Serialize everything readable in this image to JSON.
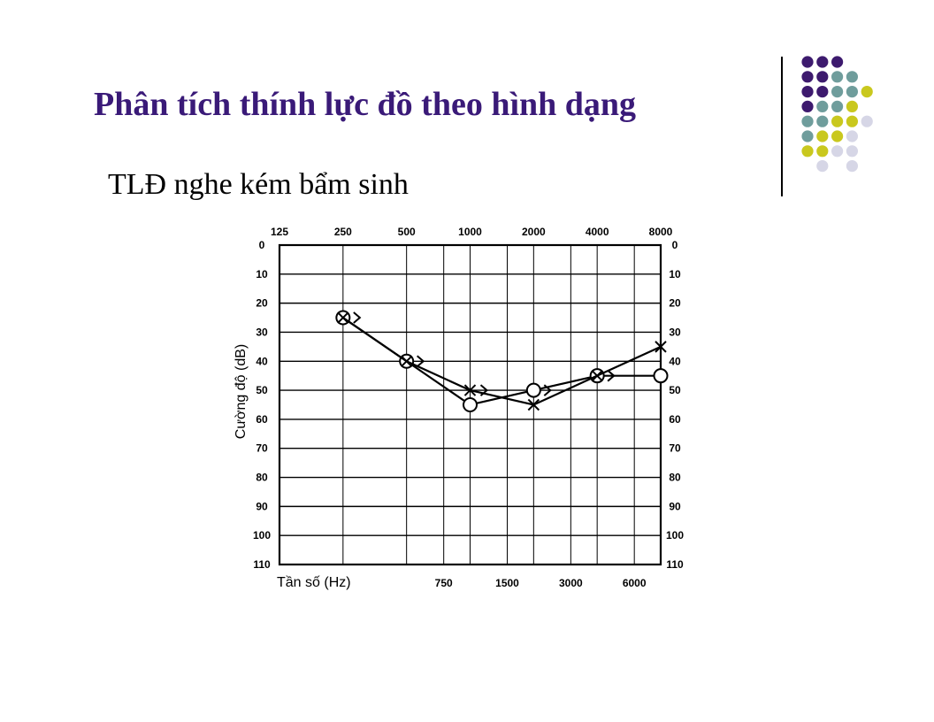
{
  "slide": {
    "title": "Phân tích thính lực đồ theo hình dạng",
    "subtitle": "TLĐ nghe kém bẩm sinh"
  },
  "decor": {
    "icon": "dot-grid-decoration",
    "colors": {
      "purple": "#3d1a6e",
      "teal": "#6f9d9c",
      "yellow": "#c9c81e",
      "lavender": "#d6d6e6"
    }
  },
  "chart_data": {
    "type": "line",
    "title": "",
    "xlabel": "Tần số (Hz)",
    "ylabel": "Cường độ (dB)",
    "x_scale": "log",
    "x_ticks_top": [
      "125",
      "250",
      "500",
      "1000",
      "2000",
      "4000",
      "8000"
    ],
    "x_ticks_bottom": [
      "750",
      "1500",
      "3000",
      "6000"
    ],
    "y_ticks": [
      "0",
      "10",
      "20",
      "30",
      "40",
      "50",
      "60",
      "70",
      "80",
      "90",
      "100",
      "110"
    ],
    "ylim": [
      0,
      110
    ],
    "y_inverted": true,
    "grid": true,
    "series": [
      {
        "marker": "circle",
        "x": [
          250,
          500,
          1000,
          2000,
          4000,
          8000
        ],
        "values": [
          25,
          40,
          55,
          50,
          45,
          45
        ]
      },
      {
        "marker": "x",
        "x": [
          250,
          500,
          1000,
          2000,
          4000,
          8000
        ],
        "values": [
          25,
          40,
          50,
          55,
          45,
          35
        ]
      },
      {
        "marker": "bracket",
        "x": [
          250,
          500,
          1000,
          2000,
          4000
        ],
        "values": [
          25,
          40,
          50,
          50,
          45
        ]
      }
    ]
  }
}
